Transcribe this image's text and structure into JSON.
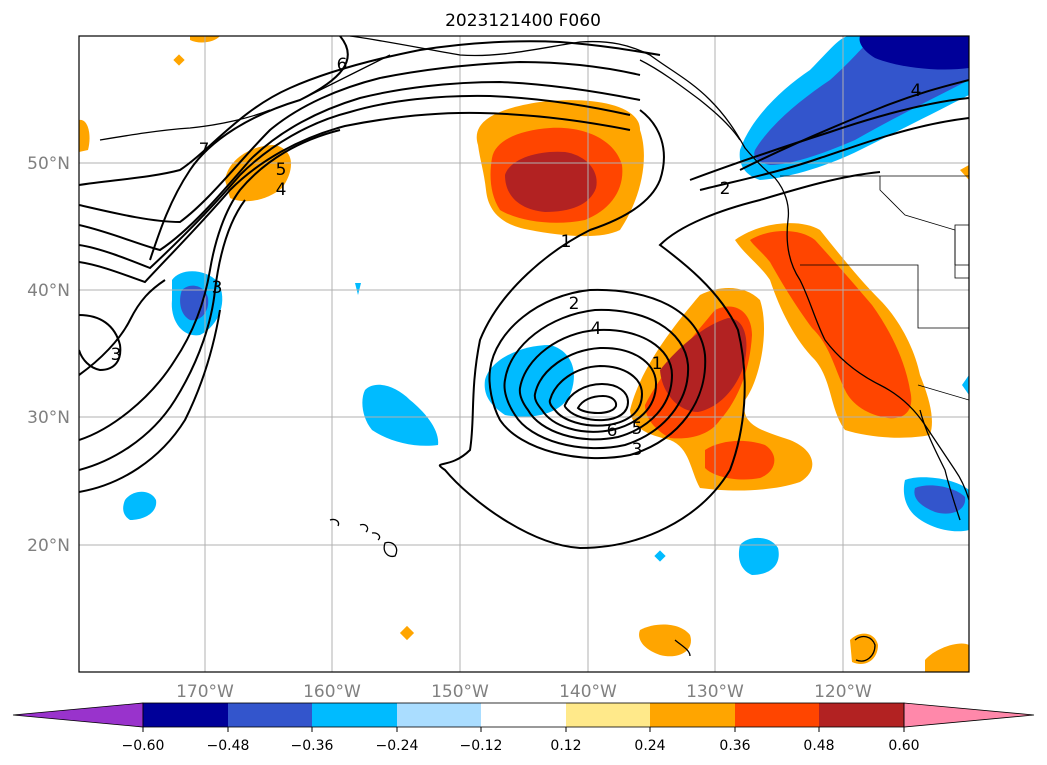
{
  "title": "2023121400 F060",
  "map": {
    "lon_labels": [
      "170°W",
      "160°W",
      "150°W",
      "140°W",
      "130°W",
      "120°W"
    ],
    "lat_labels": [
      "50°N",
      "40°N",
      "30°N",
      "20°N"
    ],
    "contour_labels": [
      "7",
      "6",
      "5",
      "4",
      "3",
      "3",
      "1",
      "2",
      "4",
      "1",
      "6",
      "5",
      "3",
      "2",
      "4"
    ]
  },
  "colorbar": {
    "ticks": [
      "−0.60",
      "−0.48",
      "−0.36",
      "−0.24",
      "−0.12",
      "0.12",
      "0.24",
      "0.36",
      "0.48",
      "0.60"
    ],
    "colors": [
      "#9933cc",
      "#000099",
      "#3355cc",
      "#00bbff",
      "#aaddff",
      "#ffffff",
      "#ffe98a",
      "#ffa500",
      "#ff4500",
      "#b22222",
      "#ff88aa"
    ]
  }
}
